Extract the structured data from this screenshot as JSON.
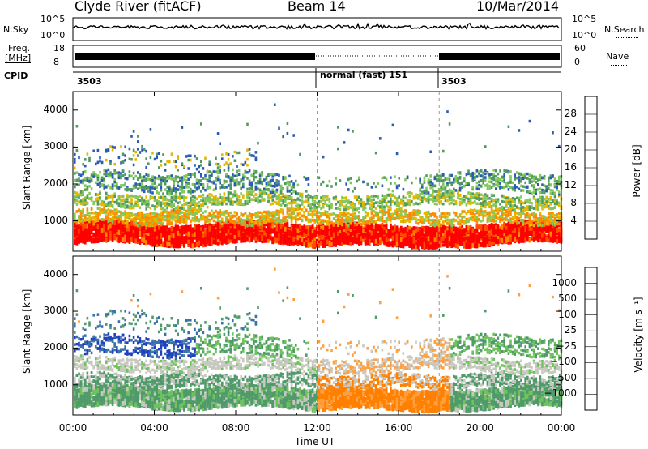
{
  "header": {
    "station": "Clyde River (fitACF)",
    "beam": "Beam 14",
    "date": "10/Mar/2014"
  },
  "strip_panels": {
    "nsky": {
      "label": "N.Sky",
      "right_label": "N.Search",
      "left_ticks": [
        "10^5",
        "10^0"
      ],
      "right_ticks": [
        "10^5",
        "10^0"
      ]
    },
    "freq": {
      "label_line1": "Freq.",
      "label_line2": "[MHz]",
      "right_label": "Nave",
      "left_ticks": [
        "18",
        "8"
      ],
      "right_ticks": [
        "60",
        "0"
      ]
    },
    "cpid": {
      "label": "CPID",
      "segments": [
        {
          "start_hour": 0,
          "label": "3503"
        },
        {
          "start_hour": 12,
          "label": "normal (fast) 151"
        },
        {
          "start_hour": 18,
          "label": "3503"
        }
      ]
    }
  },
  "chart_data": [
    {
      "type": "heatmap",
      "name": "power",
      "ylabel": "Slant Range [km]",
      "xlabel": "",
      "x_ticks": [
        "00:00",
        "04:00",
        "08:00",
        "12:00",
        "16:00",
        "20:00",
        "00:00"
      ],
      "xlim_hours": [
        0,
        24
      ],
      "y_ticks": [
        1000,
        2000,
        3000,
        4000
      ],
      "ylim_km": [
        180,
        4500
      ],
      "colorbar": {
        "label": "Power [dB]",
        "ticks": [
          "4",
          "8",
          "12",
          "16",
          "20",
          "24",
          "28"
        ],
        "range": [
          0,
          30
        ],
        "colors": [
          "#0000ff",
          "#2a59b8",
          "#4f9a5e",
          "#82c85a",
          "#e5b800",
          "#ff8800",
          "#ff5000",
          "#ff0000"
        ]
      }
    },
    {
      "type": "heatmap",
      "name": "velocity",
      "ylabel": "Slant Range [km]",
      "xlabel": "Time UT",
      "x_ticks": [
        "00:00",
        "04:00",
        "08:00",
        "12:00",
        "16:00",
        "20:00",
        "00:00"
      ],
      "xlim_hours": [
        0,
        24
      ],
      "y_ticks": [
        1000,
        2000,
        3000,
        4000
      ],
      "ylim_km": [
        180,
        4500
      ],
      "colorbar": {
        "label": "Velocity [m s⁻¹]",
        "ticks": [
          "1000",
          "500",
          "100",
          "25",
          "−25",
          "−100",
          "−500",
          "−1000"
        ],
        "colors": [
          "#2040c0",
          "#3a72a8",
          "#4f9a6a",
          "#6fc25e",
          "#c8c8c0",
          "#ffa040",
          "#ff8000",
          "#ff5000",
          "#ff0000"
        ]
      }
    }
  ]
}
